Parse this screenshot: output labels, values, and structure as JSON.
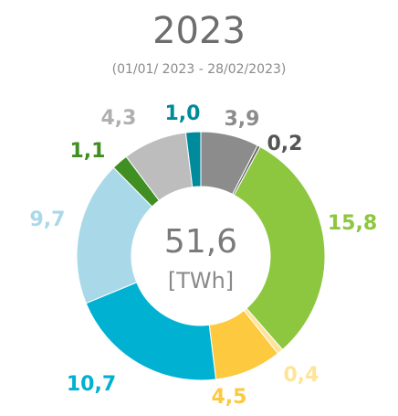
{
  "chart_data": {
    "type": "donut",
    "title": "2023",
    "subtitle": "(01/01/ 2023 - 28/02/2023)",
    "center_label": "51,6",
    "center_unit": "[TWh]",
    "values": [
      3.9,
      0.2,
      15.8,
      0.4,
      4.5,
      10.7,
      9.7,
      1.1,
      4.3,
      1.0
    ],
    "value_labels": [
      "3,9",
      "0,2",
      "15,8",
      "0,4",
      "4,5",
      "10,7",
      "9,7",
      "1,1",
      "4,3",
      "1,0"
    ],
    "colors": [
      "#8c8c8c",
      "#6b6b6b",
      "#8dc63f",
      "#fde49a",
      "#fcc93f",
      "#00b1d2",
      "#a9d9e9",
      "#3f8f22",
      "#bdbdbd",
      "#008b9c"
    ],
    "label_colors": [
      "#8c8c8c",
      "#555555",
      "#8dc63f",
      "#fde49a",
      "#fcc93f",
      "#00b1d2",
      "#a9d9e9",
      "#3f8f22",
      "#b0b0b0",
      "#008b9c"
    ]
  }
}
